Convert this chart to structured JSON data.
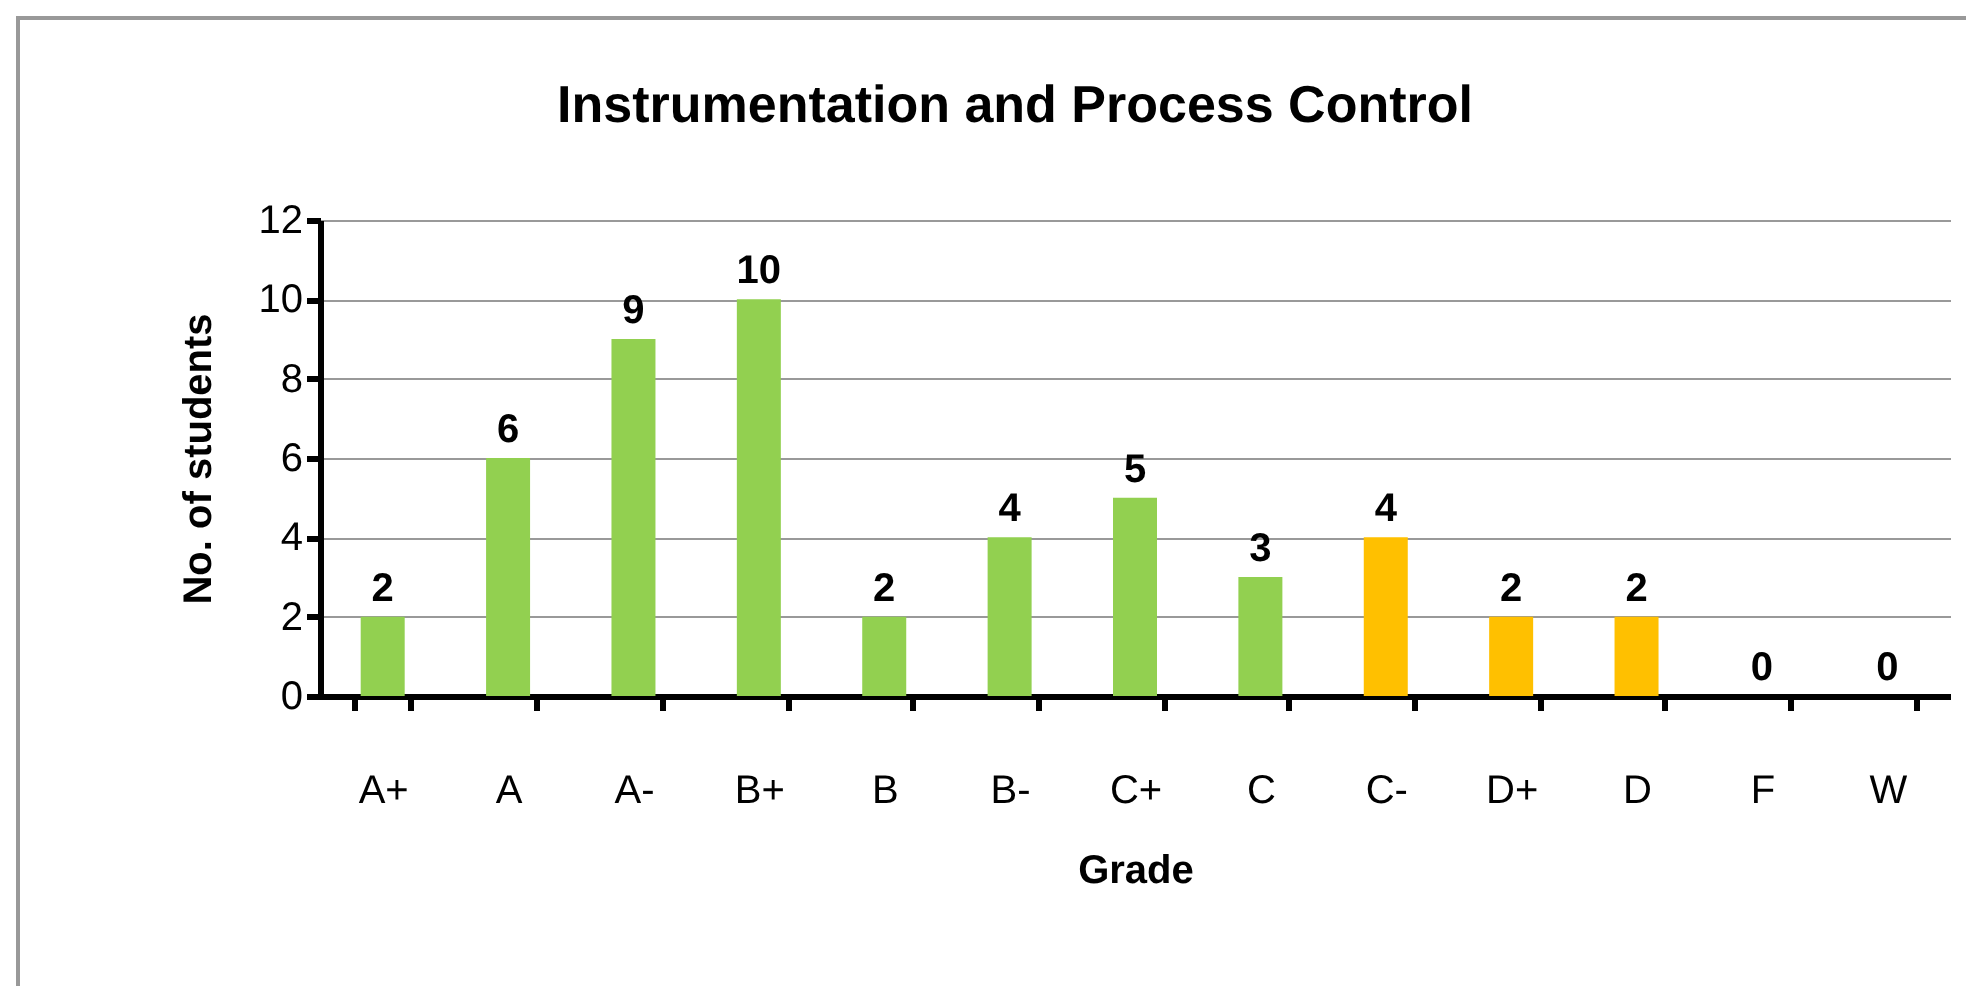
{
  "chart_data": {
    "type": "bar",
    "title": "Instrumentation and Process Control",
    "xlabel": "Grade",
    "ylabel": "No. of students",
    "categories": [
      "A+",
      "A",
      "A-",
      "B+",
      "B",
      "B-",
      "C+",
      "C",
      "C-",
      "D+",
      "D",
      "F",
      "W"
    ],
    "values": [
      2,
      6,
      9,
      10,
      2,
      4,
      5,
      3,
      4,
      2,
      2,
      0,
      0
    ],
    "colors": [
      "#92d050",
      "#92d050",
      "#92d050",
      "#92d050",
      "#92d050",
      "#92d050",
      "#92d050",
      "#92d050",
      "#ffc000",
      "#ffc000",
      "#ffc000",
      "#ffc000",
      "#ffc000"
    ],
    "ylim": [
      0,
      12
    ],
    "yticks": [
      0,
      2,
      4,
      6,
      8,
      10,
      12
    ],
    "grid": "y",
    "data_labels": true
  }
}
